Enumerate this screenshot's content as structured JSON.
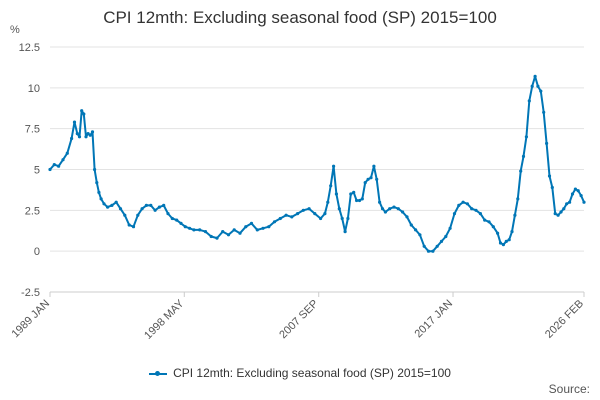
{
  "header": {
    "title": "CPI 12mth: Excluding seasonal food (SP) 2015=100"
  },
  "footer": {
    "source_label": "Source:"
  },
  "chart_data": {
    "type": "line",
    "title": "CPI 12mth: Excluding seasonal food (SP) 2015=100",
    "ylabel": "%",
    "ylim": [
      -2.5,
      12.5
    ],
    "yticks": [
      "12.5",
      "10",
      "7.5",
      "5",
      "2.5",
      "0",
      "-2.5"
    ],
    "xlim": [
      1989.0,
      2026.1
    ],
    "xticks": [
      {
        "label": "1989 JAN",
        "x": 1989.0
      },
      {
        "label": "1998 MAY",
        "x": 1998.33
      },
      {
        "label": "2007 SEP",
        "x": 2007.67
      },
      {
        "label": "2017 JAN",
        "x": 2017.0
      },
      {
        "label": "2026 FEB",
        "x": 2026.1
      }
    ],
    "grid": true,
    "color": "#0076b6",
    "series": [
      {
        "name": "CPI 12mth: Excluding seasonal food (SP) 2015=100",
        "x": [
          1989.0,
          1989.3,
          1989.6,
          1989.9,
          1990.2,
          1990.5,
          1990.7,
          1990.9,
          1991.05,
          1991.2,
          1991.35,
          1991.5,
          1991.65,
          1991.8,
          1991.95,
          1992.1,
          1992.25,
          1992.4,
          1992.55,
          1992.75,
          1993.0,
          1993.3,
          1993.6,
          1993.9,
          1994.2,
          1994.5,
          1994.8,
          1995.1,
          1995.4,
          1995.7,
          1996.0,
          1996.3,
          1996.6,
          1996.9,
          1997.2,
          1997.5,
          1997.8,
          1998.1,
          1998.4,
          1998.7,
          1999.0,
          1999.4,
          1999.8,
          2000.2,
          2000.6,
          2001.0,
          2001.4,
          2001.8,
          2002.2,
          2002.6,
          2003.0,
          2003.4,
          2003.8,
          2004.2,
          2004.6,
          2005.0,
          2005.4,
          2005.8,
          2006.2,
          2006.6,
          2007.0,
          2007.4,
          2007.8,
          2008.1,
          2008.3,
          2008.5,
          2008.7,
          2008.9,
          2009.1,
          2009.3,
          2009.5,
          2009.7,
          2009.9,
          2010.1,
          2010.3,
          2010.5,
          2010.7,
          2010.9,
          2011.1,
          2011.3,
          2011.5,
          2011.7,
          2011.9,
          2012.1,
          2012.3,
          2012.6,
          2012.9,
          2013.2,
          2013.5,
          2013.8,
          2014.1,
          2014.4,
          2014.7,
          2015.0,
          2015.3,
          2015.6,
          2015.9,
          2016.2,
          2016.5,
          2016.8,
          2017.1,
          2017.4,
          2017.7,
          2018.0,
          2018.3,
          2018.6,
          2018.9,
          2019.2,
          2019.5,
          2019.8,
          2020.1,
          2020.3,
          2020.5,
          2020.7,
          2020.9,
          2021.1,
          2021.3,
          2021.5,
          2021.7,
          2021.9,
          2022.1,
          2022.3,
          2022.5,
          2022.7,
          2022.9,
          2023.1,
          2023.3,
          2023.5,
          2023.7,
          2023.9,
          2024.1,
          2024.3,
          2024.5,
          2024.7,
          2024.9,
          2025.1,
          2025.3,
          2025.5,
          2025.7,
          2025.9,
          2026.1
        ],
        "values": [
          5.0,
          5.3,
          5.2,
          5.6,
          6.0,
          6.9,
          7.9,
          7.2,
          7.0,
          8.6,
          8.4,
          7.0,
          7.2,
          7.1,
          7.3,
          5.0,
          4.2,
          3.6,
          3.2,
          2.9,
          2.7,
          2.8,
          3.0,
          2.6,
          2.2,
          1.6,
          1.5,
          2.2,
          2.6,
          2.8,
          2.8,
          2.5,
          2.7,
          2.8,
          2.3,
          2.0,
          1.9,
          1.7,
          1.5,
          1.4,
          1.3,
          1.3,
          1.2,
          0.9,
          0.8,
          1.2,
          1.0,
          1.3,
          1.1,
          1.5,
          1.7,
          1.3,
          1.4,
          1.5,
          1.8,
          2.0,
          2.2,
          2.1,
          2.3,
          2.5,
          2.6,
          2.3,
          2.0,
          2.3,
          3.0,
          4.0,
          5.2,
          3.5,
          2.6,
          2.0,
          1.2,
          2.0,
          3.5,
          3.6,
          3.1,
          3.1,
          3.2,
          4.2,
          4.4,
          4.5,
          5.2,
          4.4,
          3.0,
          2.6,
          2.4,
          2.6,
          2.7,
          2.6,
          2.4,
          2.1,
          1.6,
          1.3,
          1.0,
          0.3,
          0.0,
          0.0,
          0.3,
          0.6,
          0.9,
          1.4,
          2.3,
          2.8,
          3.0,
          2.9,
          2.6,
          2.5,
          2.3,
          1.9,
          1.8,
          1.5,
          1.1,
          0.5,
          0.4,
          0.6,
          0.7,
          1.2,
          2.2,
          3.2,
          4.9,
          5.8,
          7.0,
          9.2,
          10.1,
          10.7,
          10.1,
          9.8,
          8.5,
          6.6,
          4.6,
          3.9,
          2.3,
          2.2,
          2.4,
          2.6,
          2.9,
          3.0,
          3.5,
          3.8,
          3.7,
          3.4,
          3.0
        ]
      }
    ]
  }
}
